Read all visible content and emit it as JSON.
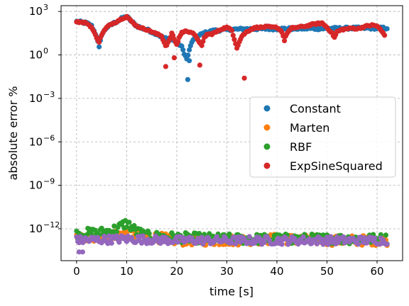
{
  "chart_data": {
    "type": "scatter",
    "xlabel": "time [s]",
    "ylabel": "absolute error %",
    "xlim": [
      -3.1,
      65.1
    ],
    "ylog": true,
    "ylim_exp": [
      -14.2,
      3.4
    ],
    "x_ticks": [
      0,
      10,
      20,
      30,
      40,
      50,
      60
    ],
    "y_tick_exps": [
      3,
      0,
      -3,
      -6,
      -9,
      -12
    ],
    "y_tick_base": "10",
    "grid": true,
    "legend_position": "center-right",
    "series": [
      {
        "name": "Constant",
        "color": "#1f77b4",
        "band_points": [
          [
            0,
            2.3
          ],
          [
            1,
            2.25
          ],
          [
            2,
            2.2
          ],
          [
            3,
            2.0
          ],
          [
            4,
            1.3
          ],
          [
            4.5,
            0.5
          ],
          [
            5,
            1.4
          ],
          [
            6,
            1.9
          ],
          [
            7,
            2.1
          ],
          [
            8,
            2.3
          ],
          [
            9,
            2.5
          ],
          [
            10,
            2.65
          ],
          [
            11,
            2.3
          ],
          [
            12,
            2.0
          ],
          [
            13,
            1.85
          ],
          [
            14,
            1.75
          ],
          [
            15,
            1.6
          ],
          [
            16,
            1.45
          ],
          [
            17,
            1.25
          ],
          [
            18,
            1.1
          ],
          [
            19,
            1.05
          ],
          [
            20,
            0.9
          ],
          [
            21,
            0.55
          ],
          [
            22,
            -0.3
          ],
          [
            22.5,
            0.3
          ],
          [
            23,
            0.9
          ],
          [
            24,
            1.2
          ],
          [
            25,
            1.45
          ],
          [
            26,
            1.55
          ],
          [
            27,
            1.65
          ],
          [
            28,
            1.7
          ],
          [
            29,
            1.72
          ],
          [
            30,
            1.75
          ],
          [
            35,
            1.8
          ],
          [
            40,
            1.8
          ],
          [
            45,
            1.82
          ],
          [
            50,
            1.82
          ],
          [
            55,
            1.85
          ],
          [
            60,
            1.85
          ],
          [
            62,
            1.85
          ]
        ],
        "outliers": [
          [
            22.2,
            -1.7
          ],
          [
            22.5,
            -0.4
          ]
        ]
      },
      {
        "name": "Marten",
        "color": "#ff7f0e",
        "band_points": [
          [
            0,
            -12.7
          ],
          [
            10,
            -12.3
          ],
          [
            20,
            -12.8
          ],
          [
            30,
            -12.8
          ],
          [
            40,
            -12.7
          ],
          [
            50,
            -12.8
          ],
          [
            62,
            -12.8
          ]
        ],
        "outliers": []
      },
      {
        "name": "RBF",
        "color": "#2ca02c",
        "band_points": [
          [
            0,
            -12.4
          ],
          [
            2,
            -12.3
          ],
          [
            4,
            -12.3
          ],
          [
            6,
            -12.2
          ],
          [
            8,
            -12.0
          ],
          [
            9,
            -11.8
          ],
          [
            10,
            -11.6
          ],
          [
            11,
            -11.9
          ],
          [
            12,
            -12.2
          ],
          [
            14,
            -12.5
          ],
          [
            20,
            -12.6
          ],
          [
            30,
            -12.7
          ],
          [
            40,
            -12.7
          ],
          [
            50,
            -12.7
          ],
          [
            62,
            -12.7
          ]
        ],
        "outliers": []
      },
      {
        "name": "ExpSineSquared",
        "color": "#d62728",
        "band_points": [
          [
            0,
            2.3
          ],
          [
            1,
            2.25
          ],
          [
            2,
            2.2
          ],
          [
            3,
            1.9
          ],
          [
            4,
            1.2
          ],
          [
            4.5,
            0.9
          ],
          [
            5,
            1.4
          ],
          [
            6,
            1.9
          ],
          [
            7,
            2.15
          ],
          [
            8,
            2.3
          ],
          [
            9,
            2.5
          ],
          [
            10,
            2.65
          ],
          [
            11,
            2.3
          ],
          [
            12,
            2.0
          ],
          [
            13,
            1.85
          ],
          [
            14,
            1.75
          ],
          [
            15,
            1.6
          ],
          [
            16,
            1.45
          ],
          [
            17,
            1.3
          ],
          [
            17.8,
            0.6
          ],
          [
            18.5,
            1.0
          ],
          [
            19,
            1.5
          ],
          [
            19.5,
            1.1
          ],
          [
            20,
            0.7
          ],
          [
            20.5,
            1.2
          ],
          [
            21,
            1.55
          ],
          [
            22,
            1.65
          ],
          [
            23,
            1.55
          ],
          [
            24,
            1.2
          ],
          [
            25,
            0.6
          ],
          [
            25.5,
            1.2
          ],
          [
            26,
            1.4
          ],
          [
            27,
            1.45
          ],
          [
            28,
            1.6
          ],
          [
            29,
            1.8
          ],
          [
            30,
            1.9
          ],
          [
            31,
            1.7
          ],
          [
            31.5,
            1.1
          ],
          [
            32,
            0.5
          ],
          [
            32.5,
            0.9
          ],
          [
            33,
            1.3
          ],
          [
            34,
            1.6
          ],
          [
            35,
            1.8
          ],
          [
            36,
            1.9
          ],
          [
            37,
            1.9
          ],
          [
            38,
            1.95
          ],
          [
            39,
            1.9
          ],
          [
            40,
            1.9
          ],
          [
            41,
            1.6
          ],
          [
            41.5,
            1.0
          ],
          [
            42,
            1.5
          ],
          [
            43,
            1.85
          ],
          [
            44,
            1.9
          ],
          [
            45,
            1.95
          ],
          [
            46,
            2.0
          ],
          [
            47,
            2.1
          ],
          [
            48,
            2.15
          ],
          [
            49,
            2.2
          ],
          [
            50,
            1.9
          ],
          [
            51,
            1.5
          ],
          [
            51.5,
            1.2
          ],
          [
            52,
            1.6
          ],
          [
            53,
            1.75
          ],
          [
            54,
            1.8
          ],
          [
            55,
            1.85
          ],
          [
            56,
            1.8
          ],
          [
            57,
            1.9
          ],
          [
            58,
            2.0
          ],
          [
            59,
            2.05
          ],
          [
            60,
            2.0
          ],
          [
            61,
            1.6
          ],
          [
            61.5,
            1.4
          ]
        ],
        "outliers": [
          [
            17.8,
            -0.8
          ],
          [
            19.5,
            -0.2
          ],
          [
            24.6,
            -0.7
          ],
          [
            33.5,
            -1.6
          ]
        ]
      },
      {
        "name": "",
        "color": "#9467bd",
        "band_points": [
          [
            0,
            -12.8
          ],
          [
            10,
            -12.7
          ],
          [
            20,
            -12.8
          ],
          [
            30,
            -12.8
          ],
          [
            40,
            -12.8
          ],
          [
            50,
            -12.8
          ],
          [
            62,
            -12.8
          ]
        ],
        "outliers": [
          [
            0.5,
            -13.6
          ],
          [
            1.2,
            -13.6
          ]
        ]
      }
    ]
  }
}
